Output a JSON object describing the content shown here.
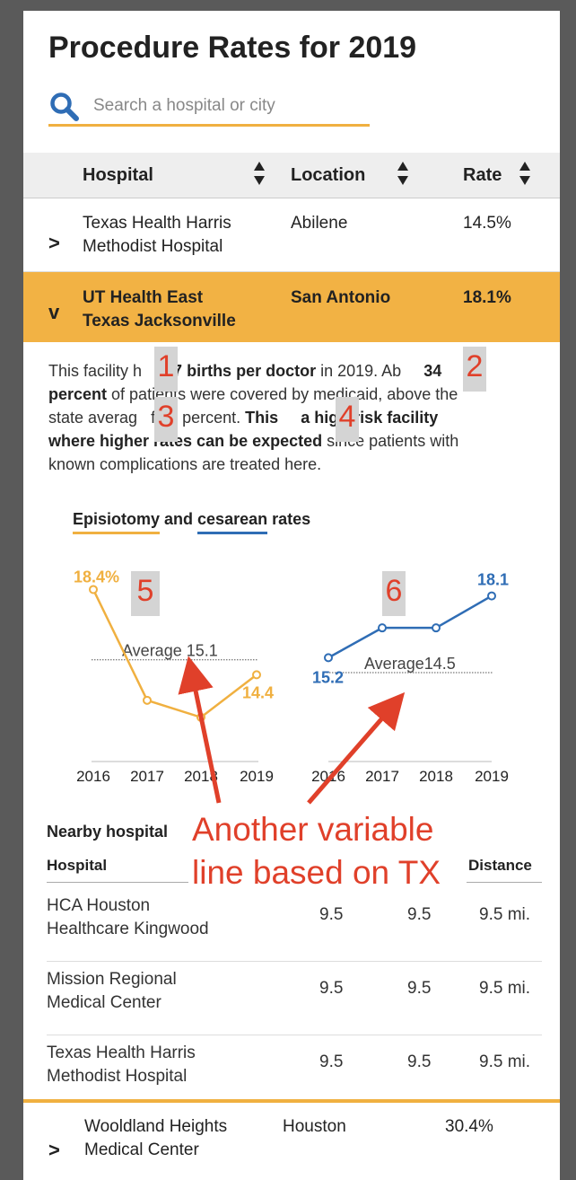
{
  "page": {
    "title": "Procedure Rates for 2019"
  },
  "search": {
    "placeholder": "Search a hospital or city",
    "icon": "search-icon"
  },
  "table": {
    "headers": {
      "hospital": "Hospital",
      "location": "Location",
      "rate": "Rate"
    },
    "rows": [
      {
        "chevron": ">",
        "hospital_line1": "Texas Health Harris",
        "hospital_line2": "Methodist Hospital",
        "location": "Abilene",
        "rate": "14.5%"
      },
      {
        "chevron": "v",
        "hospital_line1": "UT Health East",
        "hospital_line2": "Texas Jacksonville",
        "location": "San Antonio",
        "rate": "18.1%"
      },
      {
        "chevron": ">",
        "hospital_line1": "Wooldland Heights",
        "hospital_line2": "Medical Center",
        "location": "Houston",
        "rate": "30.4%"
      }
    ]
  },
  "detail": {
    "t1": "This facility h",
    "t2": "57 births per doctor",
    "t3": " in 2019. Ab",
    "t4": "34",
    "t5": "percent",
    "t6": " of pa",
    "t7": "tients were covered by medicaid, above the",
    "t8": "state averag",
    "t9": "f 24 percent. ",
    "t10": "This ",
    "t11": "a high-risk facility",
    "t12": "where higher rates can be expected",
    "t13": " since patients with",
    "t14": "known complications are treated here."
  },
  "markers": [
    "1",
    "2",
    "3",
    "4",
    "5",
    "6"
  ],
  "chart_heading": {
    "episiotomy": "Episiotomy",
    "and": " and ",
    "cesarean": "cesarean",
    "rates": " rates"
  },
  "chart_data": [
    {
      "type": "line",
      "x": [
        "2016",
        "2017",
        "2018",
        "2019"
      ],
      "values": [
        18.4,
        13.2,
        12.4,
        14.4
      ],
      "labels": {
        "first": "18.4%",
        "last": "14.4"
      },
      "average": 15.1,
      "average_label": "Average 15.1",
      "color": "#f0b040",
      "ylim": [
        11,
        19.6
      ]
    },
    {
      "type": "line",
      "x": [
        "2016",
        "2017",
        "2018",
        "2019"
      ],
      "values": [
        15.2,
        16.6,
        16.6,
        18.1
      ],
      "labels": {
        "first": "15.2",
        "last": "18.1"
      },
      "average": 14.5,
      "average_label": "Average14.5",
      "color": "#2f6db5",
      "ylim": [
        11,
        19.6
      ]
    }
  ],
  "annotation": {
    "line1": "Another variable",
    "line2": "line based on TX",
    "color": "#e0402a"
  },
  "nearby": {
    "title": "Nearby hospital",
    "headers": {
      "hospital": "Hospital",
      "distance": "Distance"
    },
    "rows": [
      {
        "name_line1": "HCA Houston",
        "name_line2": "Healthcare Kingwood",
        "v1": "9.5",
        "v2": "9.5",
        "distance": "9.5 mi."
      },
      {
        "name_line1": "Mission Regional",
        "name_line2": "Medical Center",
        "v1": "9.5",
        "v2": "9.5",
        "distance": "9.5 mi."
      },
      {
        "name_line1": "Texas Health Harris",
        "name_line2": "Methodist Hospital",
        "v1": "9.5",
        "v2": "9.5",
        "distance": "9.5 mi."
      }
    ]
  }
}
